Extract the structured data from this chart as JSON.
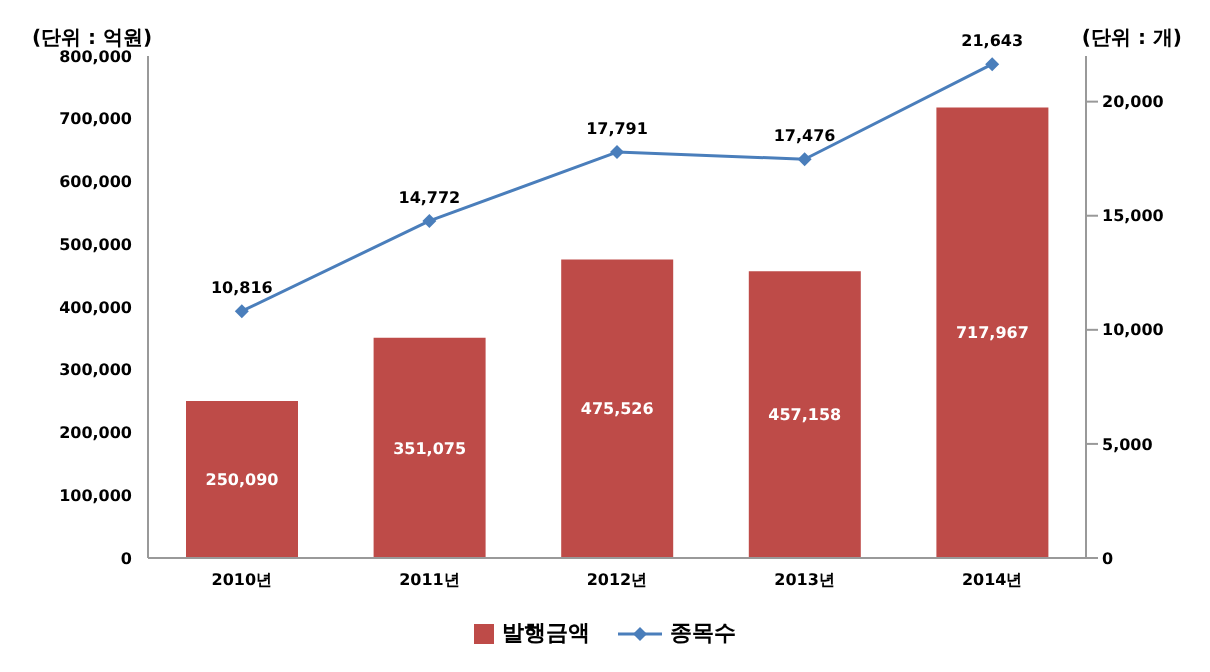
{
  "chart_data": {
    "type": "bar",
    "ylabel": "(단위 : 억원)",
    "y2label": "(단위 : 개)",
    "categories": [
      "2010년",
      "2011년",
      "2012년",
      "2013년",
      "2014년"
    ],
    "series": [
      {
        "name": "발행금액",
        "color": "#be4b48",
        "values": [
          250090,
          351075,
          475526,
          457158,
          717967
        ],
        "value_labels": [
          "250,090",
          "351,075",
          "475,526",
          "457,158",
          "717,967"
        ]
      },
      {
        "name": "종목수",
        "type": "line",
        "axis": "y2",
        "color": "#4a7ebb",
        "marker": "diamond",
        "values": [
          10816,
          14772,
          17791,
          17476,
          21643
        ],
        "value_labels": [
          "10,816",
          "14,772",
          "17,791",
          "17,476",
          "21,643"
        ]
      }
    ],
    "ylim": [
      0,
      800000
    ],
    "yticks": [
      0,
      {
        "value": 100000,
        "label": "100,000"
      },
      {
        "value": 200000,
        "label": "200,000"
      },
      {
        "value": 300000,
        "label": "300,000"
      },
      {
        "value": 400000,
        "label": "400,000"
      },
      {
        "value": 500000,
        "label": "500,000"
      },
      {
        "value": 600000,
        "label": "600,000"
      },
      {
        "value": 700000,
        "label": "700,000"
      },
      {
        "value": 800000,
        "label": "800,000"
      }
    ],
    "y2lim": [
      0,
      22000
    ],
    "y2ticks": [
      0,
      {
        "value": 5000,
        "label": "5,000"
      },
      {
        "value": 10000,
        "label": "10,000"
      },
      {
        "value": 15000,
        "label": "15,000"
      },
      {
        "value": 20000,
        "label": "20,000"
      }
    ],
    "grid": false,
    "legend": "bottom"
  }
}
